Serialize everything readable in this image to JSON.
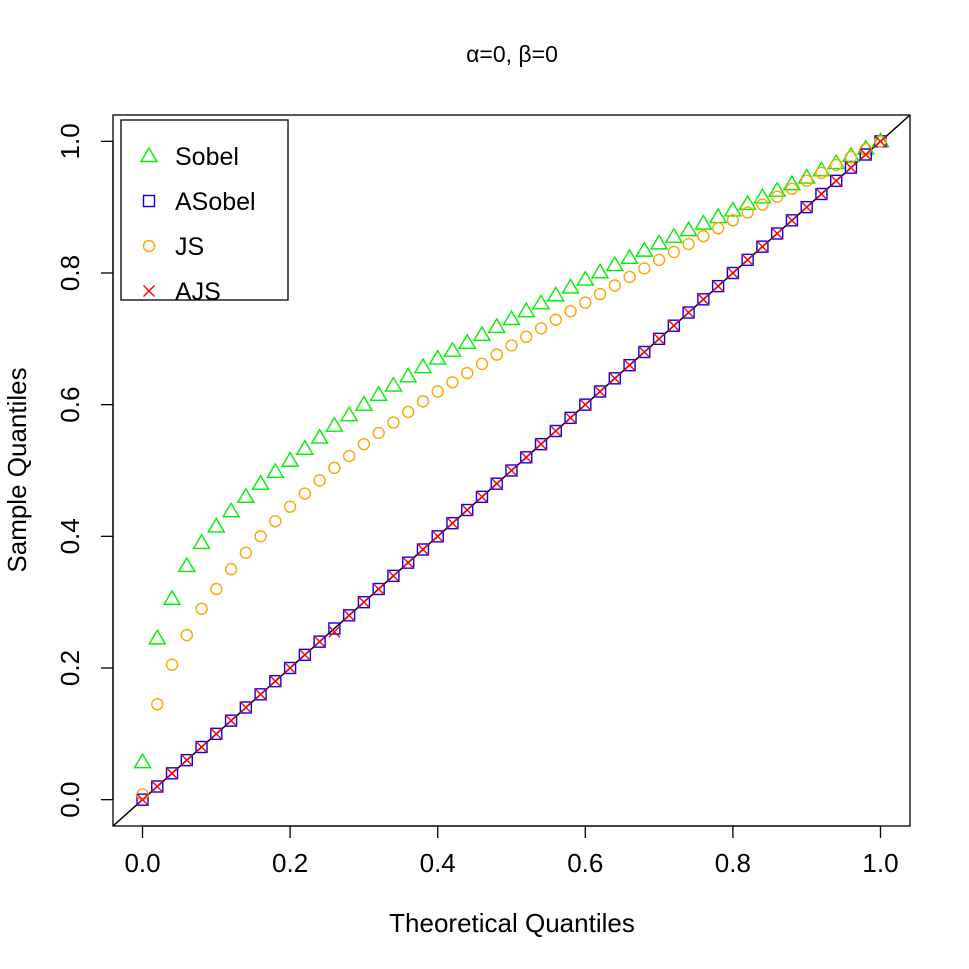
{
  "chart_data": {
    "type": "scatter",
    "title": "α=0, β=0",
    "x_label": "Theoretical Quantiles",
    "y_label": "Sample Quantiles",
    "xlim": [
      -0.04,
      1.04
    ],
    "ylim": [
      -0.04,
      1.04
    ],
    "xticks": [
      {
        "value": 0,
        "label": "0.0"
      },
      0.2,
      0.4,
      0.6,
      0.8,
      {
        "value": 1,
        "label": "1.0"
      }
    ],
    "yticks": [
      {
        "value": 0,
        "label": "0.0"
      },
      0.2,
      0.4,
      0.6,
      0.8,
      {
        "value": 1,
        "label": "1.0"
      }
    ],
    "reference_line": true,
    "legend": "top-left",
    "x": [
      0,
      0.02,
      0.04,
      0.06,
      0.08,
      0.1,
      0.12,
      0.14,
      0.16,
      0.18,
      0.2,
      0.22,
      0.24,
      0.26,
      0.28,
      0.3,
      0.32,
      0.34,
      0.36,
      0.38,
      0.4,
      0.42,
      0.44,
      0.46,
      0.48,
      0.5,
      0.52,
      0.54,
      0.56,
      0.58,
      0.6,
      0.62,
      0.64,
      0.66,
      0.68,
      0.7,
      0.72,
      0.74,
      0.76,
      0.78,
      0.8,
      0.82,
      0.84,
      0.86,
      0.88,
      0.9,
      0.92,
      0.94,
      0.96,
      0.98,
      1
    ],
    "series": [
      {
        "name": "Sobel",
        "color": "#00ee00",
        "marker": "triangle",
        "values": [
          0.057,
          0.245,
          0.305,
          0.355,
          0.39,
          0.415,
          0.438,
          0.46,
          0.48,
          0.498,
          0.515,
          0.533,
          0.55,
          0.568,
          0.584,
          0.6,
          0.615,
          0.629,
          0.643,
          0.657,
          0.67,
          0.682,
          0.694,
          0.706,
          0.718,
          0.73,
          0.742,
          0.754,
          0.766,
          0.778,
          0.79,
          0.801,
          0.812,
          0.823,
          0.834,
          0.845,
          0.855,
          0.865,
          0.875,
          0.885,
          0.895,
          0.905,
          0.915,
          0.925,
          0.935,
          0.945,
          0.956,
          0.967,
          0.978,
          0.989,
          1
        ]
      },
      {
        "name": "ASobel",
        "color": "#0000ff",
        "marker": "square",
        "values": [
          0,
          0.02,
          0.04,
          0.06,
          0.08,
          0.1,
          0.12,
          0.14,
          0.16,
          0.18,
          0.2,
          0.22,
          0.24,
          0.26,
          0.28,
          0.3,
          0.32,
          0.34,
          0.36,
          0.38,
          0.4,
          0.42,
          0.44,
          0.46,
          0.48,
          0.5,
          0.52,
          0.54,
          0.56,
          0.58,
          0.6,
          0.62,
          0.64,
          0.66,
          0.68,
          0.7,
          0.72,
          0.74,
          0.76,
          0.78,
          0.8,
          0.82,
          0.84,
          0.86,
          0.88,
          0.9,
          0.92,
          0.94,
          0.96,
          0.98,
          1
        ]
      },
      {
        "name": "JS",
        "color": "#ffa500",
        "marker": "circle",
        "values": [
          0.008,
          0.145,
          0.205,
          0.25,
          0.29,
          0.32,
          0.35,
          0.375,
          0.4,
          0.423,
          0.445,
          0.465,
          0.485,
          0.504,
          0.522,
          0.54,
          0.557,
          0.573,
          0.589,
          0.605,
          0.62,
          0.634,
          0.648,
          0.662,
          0.676,
          0.69,
          0.703,
          0.716,
          0.729,
          0.742,
          0.755,
          0.768,
          0.781,
          0.794,
          0.807,
          0.82,
          0.832,
          0.844,
          0.856,
          0.868,
          0.88,
          0.892,
          0.904,
          0.916,
          0.928,
          0.94,
          0.952,
          0.964,
          0.976,
          0.988,
          1
        ]
      },
      {
        "name": "AJS",
        "color": "#ff0000",
        "marker": "cross",
        "values": [
          0,
          0.02,
          0.04,
          0.06,
          0.08,
          0.1,
          0.12,
          0.14,
          0.16,
          0.18,
          0.2,
          0.22,
          0.24,
          0.255,
          0.28,
          0.3,
          0.32,
          0.34,
          0.36,
          0.38,
          0.4,
          0.42,
          0.44,
          0.46,
          0.48,
          0.5,
          0.52,
          0.54,
          0.56,
          0.58,
          0.6,
          0.62,
          0.64,
          0.66,
          0.68,
          0.7,
          0.72,
          0.74,
          0.76,
          0.78,
          0.8,
          0.82,
          0.84,
          0.86,
          0.88,
          0.9,
          0.92,
          0.94,
          0.96,
          0.98,
          1
        ]
      }
    ]
  }
}
